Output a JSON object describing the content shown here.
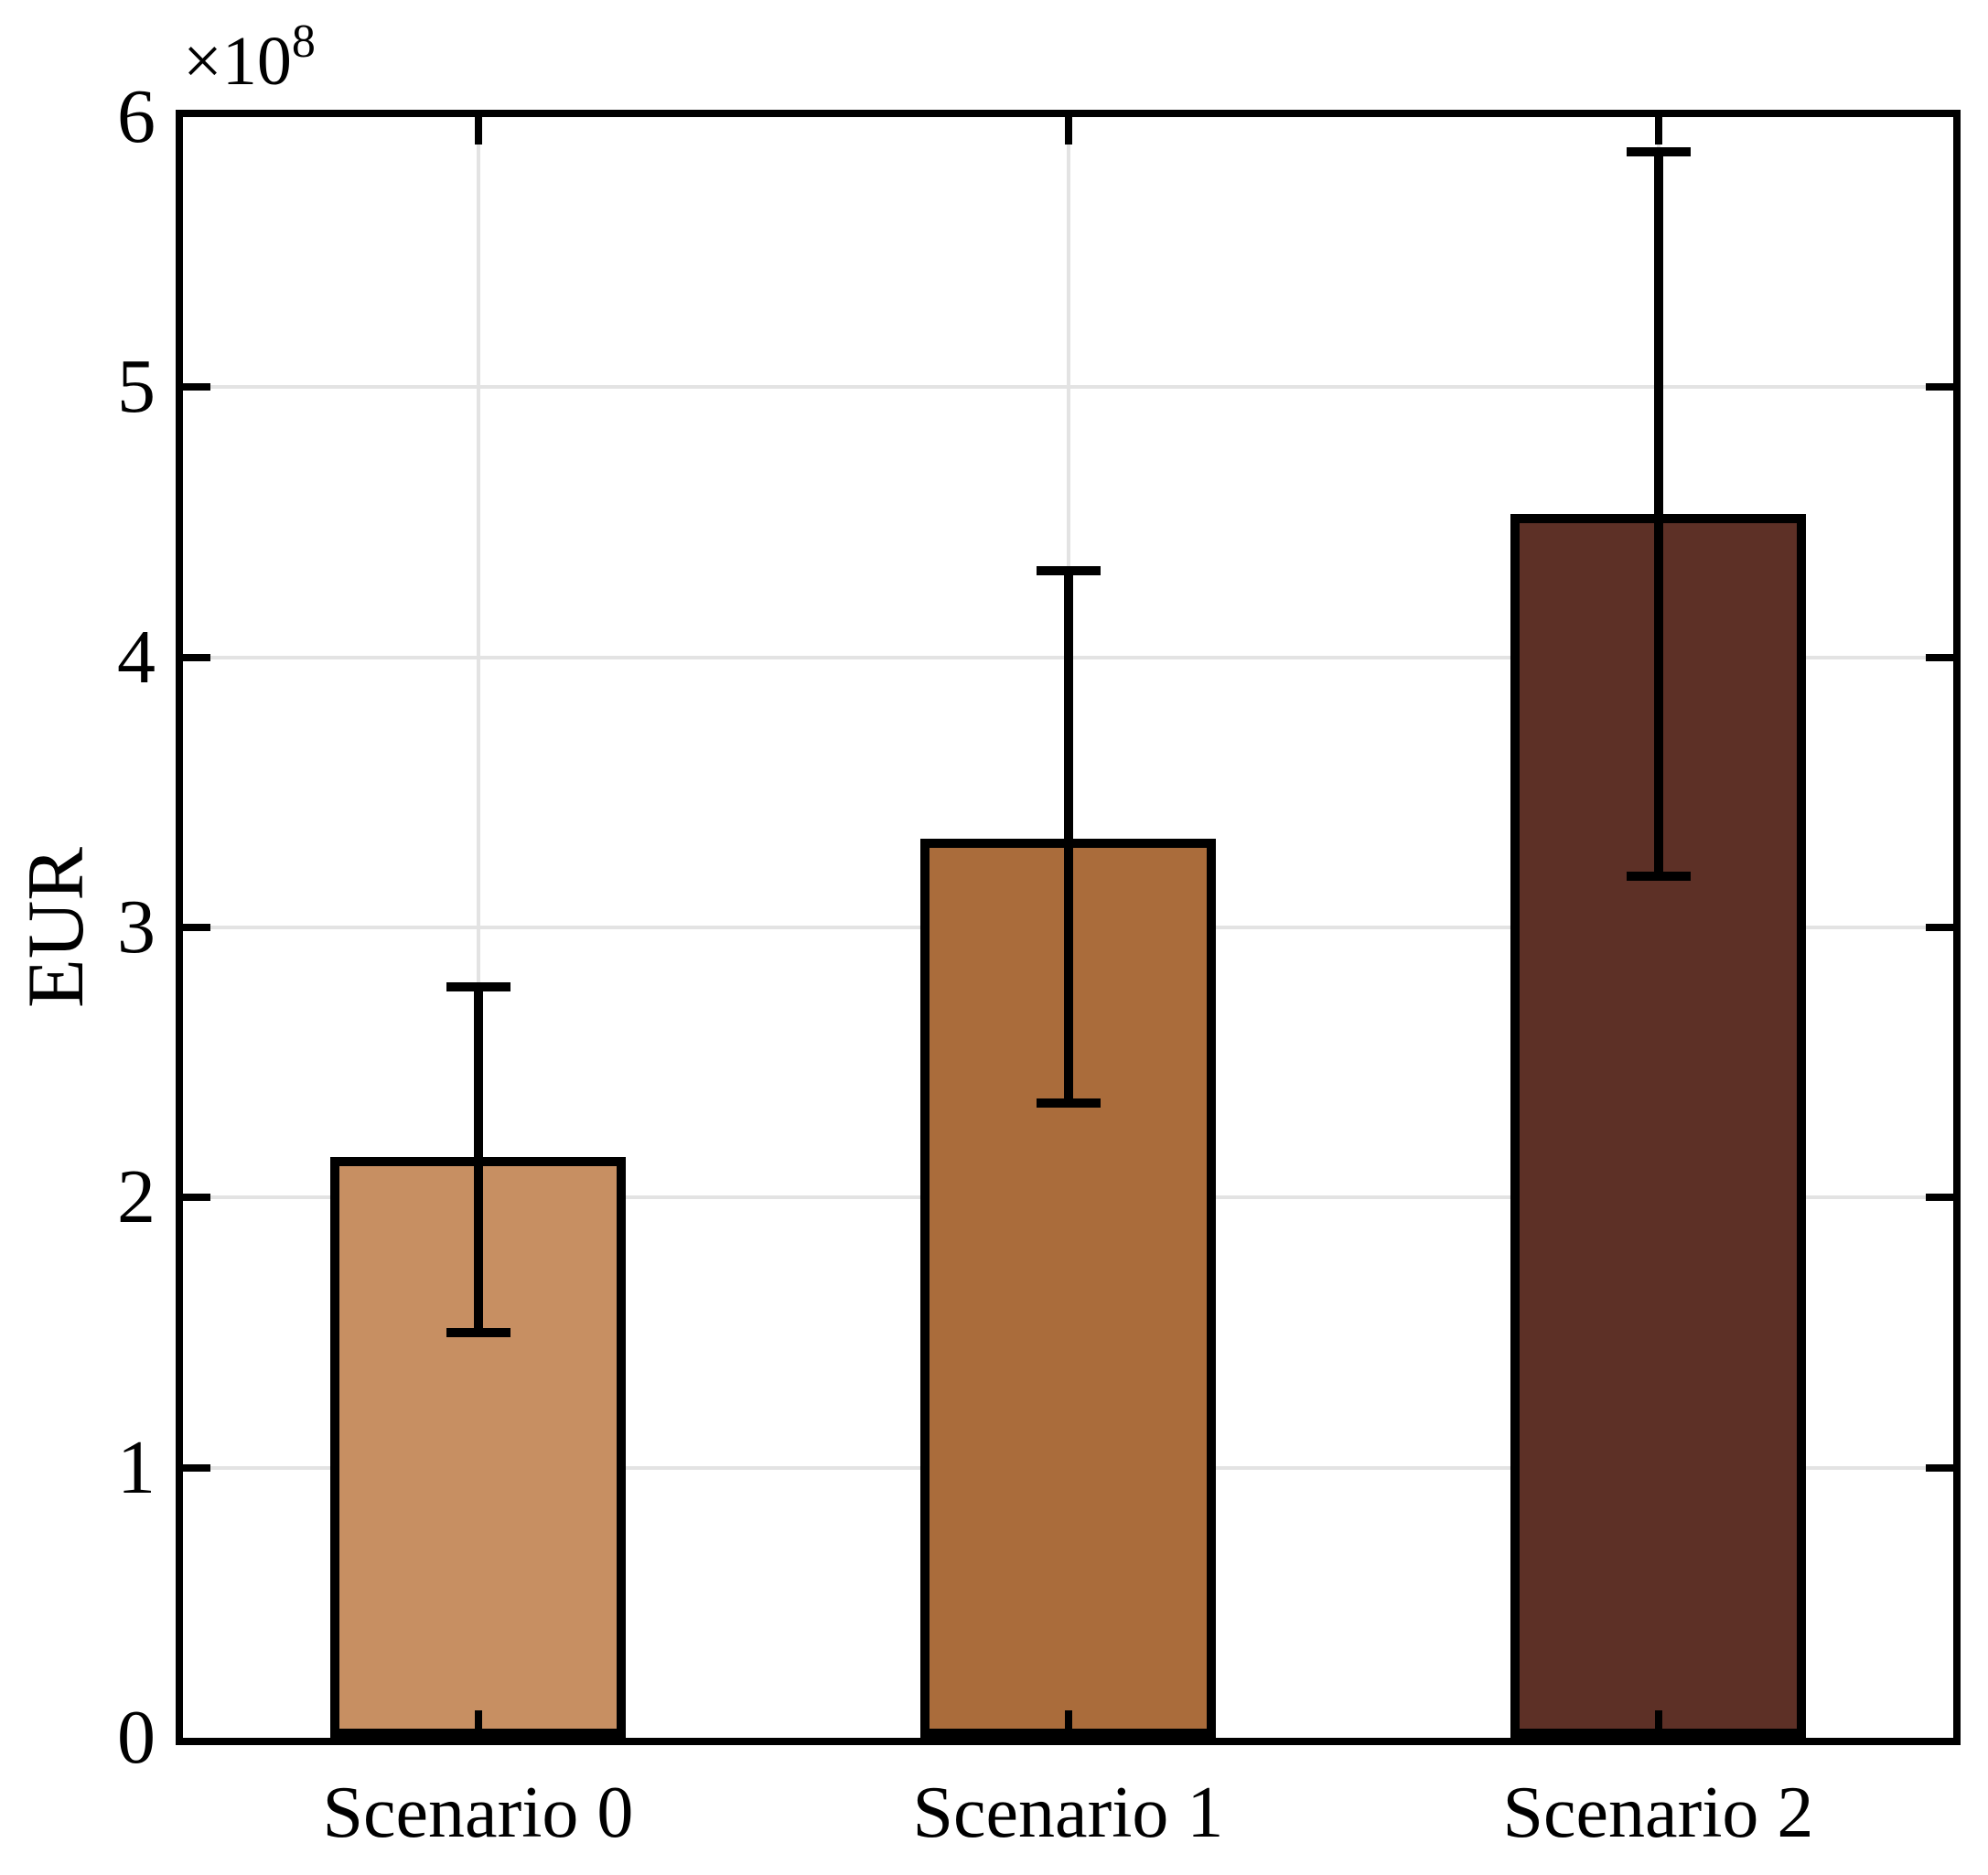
{
  "figure": {
    "ylabel": "EUR",
    "offset": {
      "base": "×10",
      "exponent": "8"
    }
  },
  "chart_data": {
    "type": "bar",
    "title": "",
    "xlabel": "",
    "ylabel": "EUR",
    "y_axis_offset_text": "×10^8",
    "unit_multiplier": 100000000.0,
    "categories": [
      "Scenario 0",
      "Scenario 1",
      "Scenario 2"
    ],
    "values": [
      2.15,
      3.33,
      4.53
    ],
    "error_low": [
      1.5,
      2.35,
      3.19
    ],
    "error_high": [
      2.78,
      4.32,
      5.87
    ],
    "values_eur": [
      215000000.0,
      333000000.0,
      453000000.0
    ],
    "error_low_eur": [
      150000000.0,
      235000000.0,
      319000000.0
    ],
    "error_high_eur": [
      278000000.0,
      432000000.0,
      587000000.0
    ],
    "ylim": [
      0,
      6
    ],
    "y_ticks": [
      0,
      1,
      2,
      3,
      4,
      5,
      6
    ],
    "grid": true,
    "legend": null,
    "bar_width_fraction": 0.5,
    "bar_colors": [
      "#C78F62",
      "#AA6C3B",
      "#5D3026"
    ],
    "bar_edge_color": "#000000",
    "error_bar_color": "#000000",
    "gridline_color": "#E3E3E3",
    "background_color": "#FFFFFF"
  }
}
